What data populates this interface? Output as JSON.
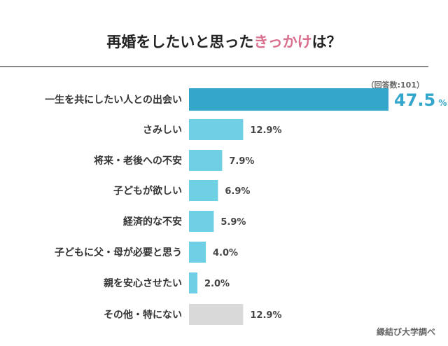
{
  "title": {
    "prefix": "再婚をしたいと思った",
    "highlight": "きっかけ",
    "suffix": "は？"
  },
  "respondents": "（回答数:101）",
  "source": "縁結び大学調べ",
  "colors": {
    "highlight_bar": "#34a6cc",
    "bar": "#6fcfe4",
    "other_bar": "#d9d9d9",
    "title_accent": "#d9708e",
    "highlight_label": "#34a6cc"
  },
  "chart_data": {
    "type": "bar",
    "orientation": "horizontal",
    "title": "再婚をしたいと思ったきっかけは？",
    "categories": [
      "一生を共にしたい人との出会い",
      "さみしい",
      "将来・老後への不安",
      "子どもが欲しい",
      "経済的な不安",
      "子どもに父・母が必要と思う",
      "親を安心させたい",
      "その他・特にない"
    ],
    "values": [
      47.5,
      12.9,
      7.9,
      6.9,
      5.9,
      4.0,
      2.0,
      12.9
    ],
    "labels": [
      "47.5",
      "12.9%",
      "7.9%",
      "6.9%",
      "5.9%",
      "4.0%",
      "2.0%",
      "12.9%"
    ],
    "unit": "%",
    "xlim": [
      0,
      50
    ],
    "grid": false
  }
}
